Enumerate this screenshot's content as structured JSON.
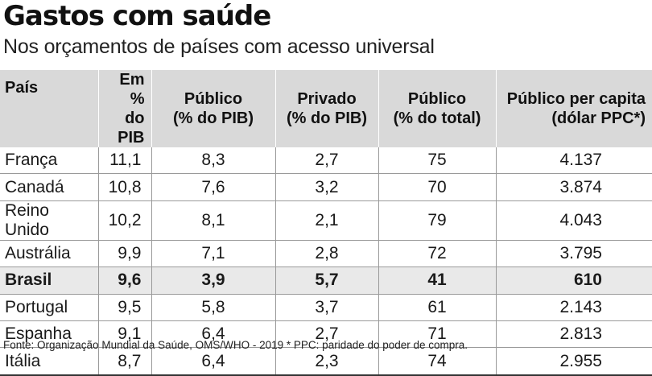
{
  "title": "Gastos com saúde",
  "subtitle": "Nos orçamentos de países com acesso universal",
  "source": "Fonte: Organização Mundial da Saúde, OMS/WHO - 2019 * PPC: paridade do poder de compra.",
  "chart_data": {
    "type": "table",
    "columns": [
      [
        "País"
      ],
      [
        "Em %",
        "do PIB"
      ],
      [
        "Público",
        "(% do PIB)"
      ],
      [
        "Privado",
        "(% do PIB)"
      ],
      [
        "Público",
        "(% do total)"
      ],
      [
        "Público per capita",
        "(dólar PPC*)"
      ]
    ],
    "rows": [
      [
        "França",
        "11,1",
        "8,3",
        "2,7",
        "75",
        "4.137"
      ],
      [
        "Canadá",
        "10,8",
        "7,6",
        "3,2",
        "70",
        "3.874"
      ],
      [
        "Reino Unido",
        "10,2",
        "8,1",
        "2,1",
        "79",
        "4.043"
      ],
      [
        "Austrália",
        "9,9",
        "7,1",
        "2,8",
        "72",
        "3.795"
      ],
      [
        "Brasil",
        "9,6",
        "3,9",
        "5,7",
        "41",
        "610"
      ],
      [
        "Portugal",
        "9,5",
        "5,8",
        "3,7",
        "61",
        "2.143"
      ],
      [
        "Espanha",
        "9,1",
        "6,4",
        "2,7",
        "71",
        "2.813"
      ],
      [
        "Itália",
        "8,7",
        "6,4",
        "2,3",
        "74",
        "2.955"
      ]
    ],
    "highlight_row": "Brasil",
    "highlight_color": "#e9e9e9",
    "header_color": "#d9d9d9"
  }
}
